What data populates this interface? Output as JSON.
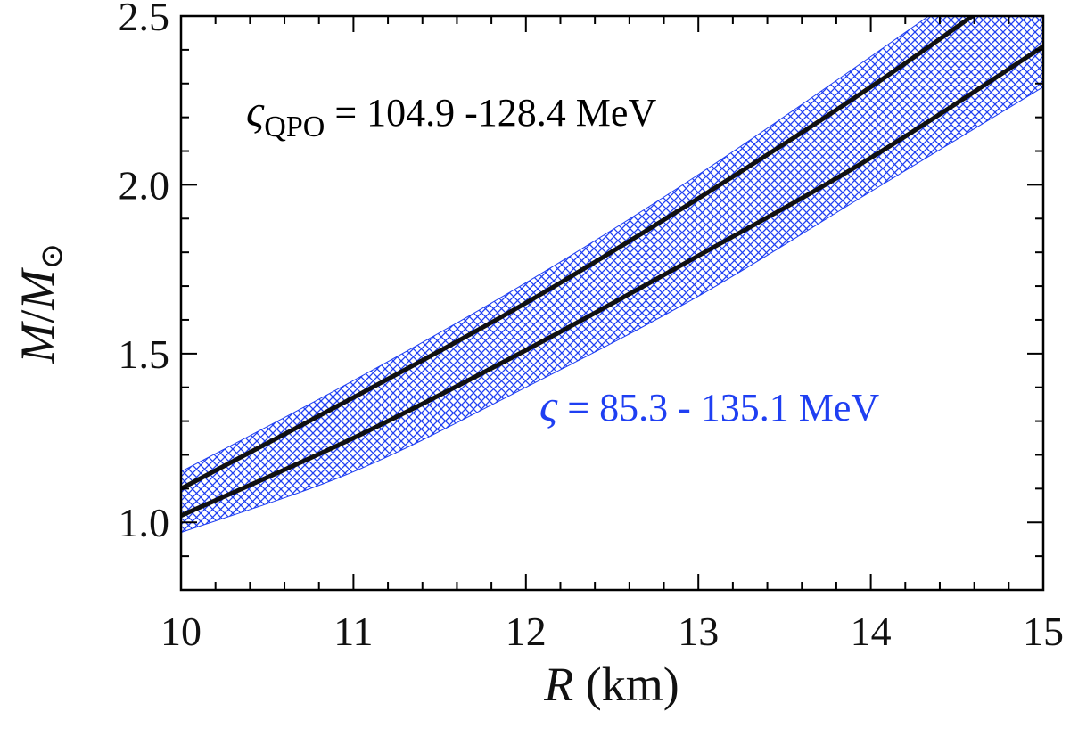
{
  "chart_data": {
    "type": "area",
    "x_label": {
      "symbol": "R",
      "unit": " (km)"
    },
    "y_label": {
      "symbol": "M",
      "slash": "/",
      "symbol2": "M",
      "subscript": "⊙"
    },
    "xlim": [
      10,
      15
    ],
    "ylim": [
      0.8,
      2.5
    ],
    "x_ticks": [
      "10",
      "11",
      "12",
      "13",
      "14",
      "15"
    ],
    "y_ticks": [
      "1.0",
      "1.5",
      "2.0",
      "2.5"
    ],
    "x_minor_step": 0.2,
    "y_minor_step": 0.1,
    "band": {
      "color": "#1f3ff2",
      "hatch": "cross-hatch",
      "x": [
        10,
        11,
        12,
        13,
        14,
        15
      ],
      "lower": [
        0.97,
        1.15,
        1.4,
        1.67,
        1.98,
        2.29
      ],
      "upper": [
        1.15,
        1.42,
        1.71,
        2.03,
        2.38,
        2.74
      ]
    },
    "series": [
      {
        "color": "#111111",
        "x": [
          10,
          11,
          12,
          13,
          14,
          15
        ],
        "y": [
          1.1,
          1.37,
          1.65,
          1.96,
          2.29,
          2.65
        ]
      },
      {
        "color": "#111111",
        "x": [
          10,
          11,
          12,
          13,
          14,
          15
        ],
        "y": [
          1.02,
          1.25,
          1.51,
          1.79,
          2.08,
          2.41
        ]
      }
    ],
    "annotations": [
      {
        "symbol": "ς",
        "subscript": "QPO",
        "text": " = 104.9 -128.4 MeV",
        "color": "#000000"
      },
      {
        "symbol": "ς",
        "text": " = 85.3 - 135.1 MeV",
        "color": "#1f3ff2"
      }
    ]
  }
}
